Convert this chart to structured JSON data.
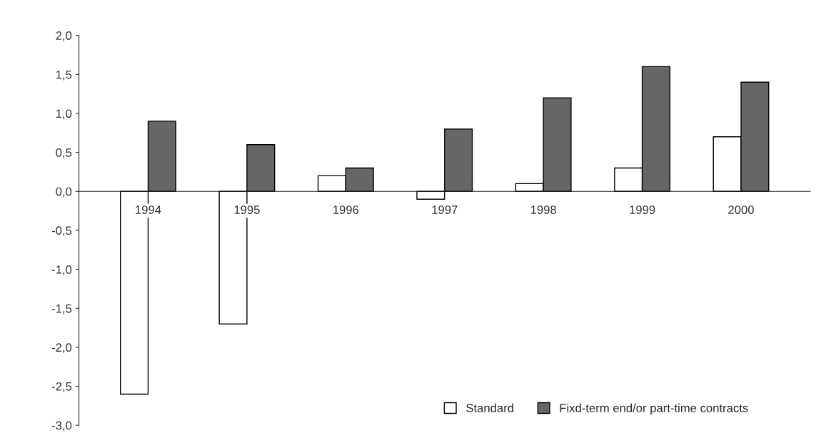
{
  "chart_data": {
    "type": "bar",
    "categories": [
      "1994",
      "1995",
      "1996",
      "1997",
      "1998",
      "1999",
      "2000"
    ],
    "series": [
      {
        "name": "Standard",
        "color": "#ffffff",
        "values": [
          -2.6,
          -1.7,
          0.2,
          -0.1,
          0.1,
          0.3,
          0.7
        ]
      },
      {
        "name": "Fixd-term end/or part-time contracts",
        "color": "#666666",
        "values": [
          0.9,
          0.6,
          0.3,
          0.8,
          1.2,
          1.6,
          1.4
        ]
      }
    ],
    "ylim": [
      -3.0,
      2.0
    ],
    "yticks": [
      {
        "value": -3.0,
        "label": "-3,0"
      },
      {
        "value": -2.5,
        "label": "-2,5"
      },
      {
        "value": -2.0,
        "label": "-2,0"
      },
      {
        "value": -1.5,
        "label": "-1,5"
      },
      {
        "value": -1.0,
        "label": "-1,0"
      },
      {
        "value": -0.5,
        "label": "-0,5"
      },
      {
        "value": 0.0,
        "label": "0,0"
      },
      {
        "value": 0.5,
        "label": "0,5"
      },
      {
        "value": 1.0,
        "label": "1,0"
      },
      {
        "value": 1.5,
        "label": "1,5"
      },
      {
        "value": 2.0,
        "label": "2,0"
      }
    ],
    "grid": false,
    "legend": "bottom right"
  }
}
